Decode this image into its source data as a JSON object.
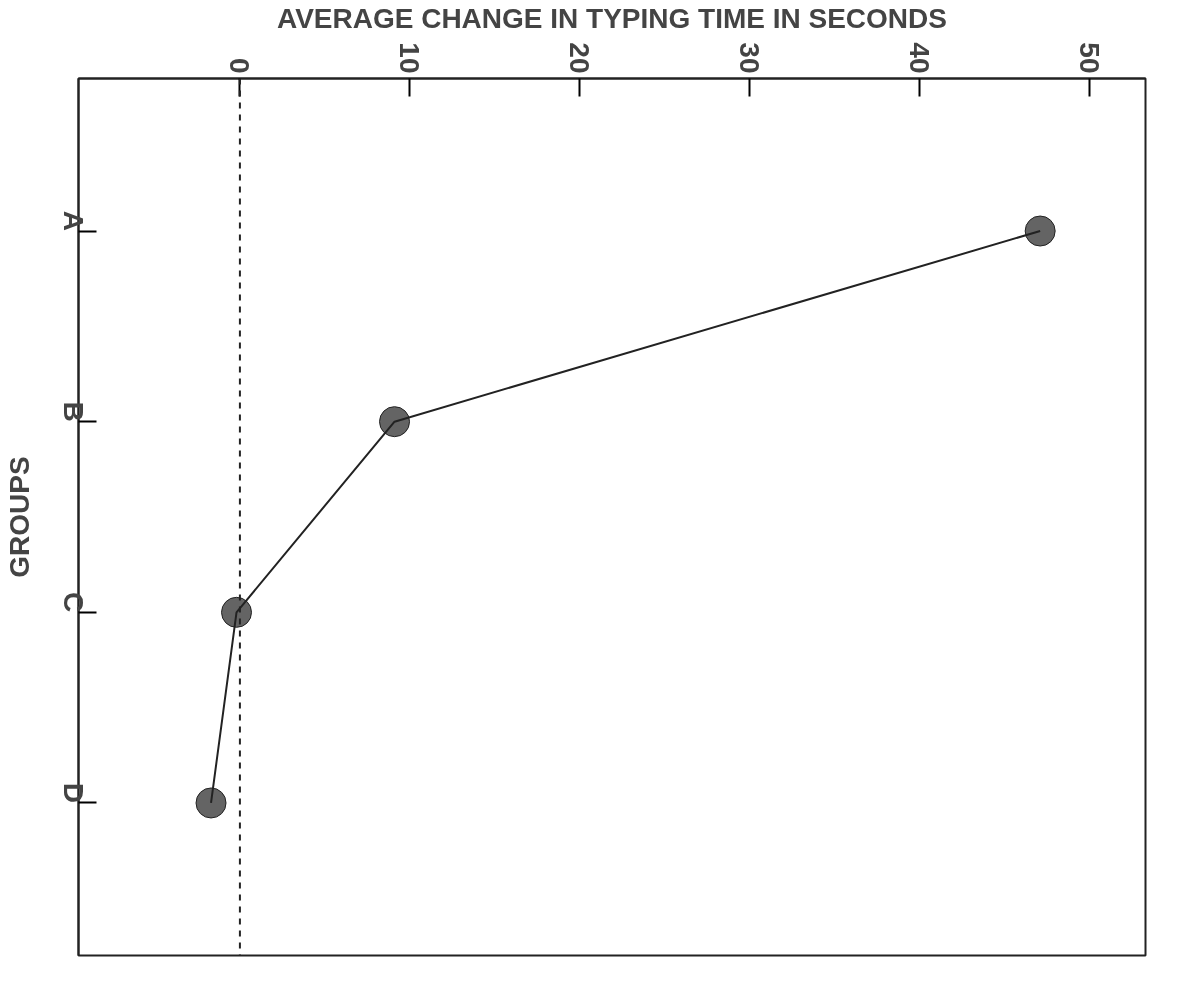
{
  "chart_data": {
    "type": "line",
    "orientation": "horizontal",
    "xlabel": "AVERAGE CHANGE IN TYPING TIME IN SECONDS",
    "ylabel": "GROUPS",
    "categories": [
      "A",
      "B",
      "C",
      "D"
    ],
    "series": [
      {
        "color": "#222222",
        "values": [
          47.1,
          9.1,
          -0.2,
          -1.7
        ]
      }
    ],
    "xlim": [
      -9.5,
      53.3
    ],
    "xticks": [
      0,
      10,
      20,
      30,
      40,
      50
    ],
    "ref_lines": [
      {
        "axis": "x",
        "value": 0,
        "line_style": "dashed",
        "color": "#222222"
      }
    ],
    "marker": "circle",
    "line_style": "solid",
    "grid": false
  }
}
